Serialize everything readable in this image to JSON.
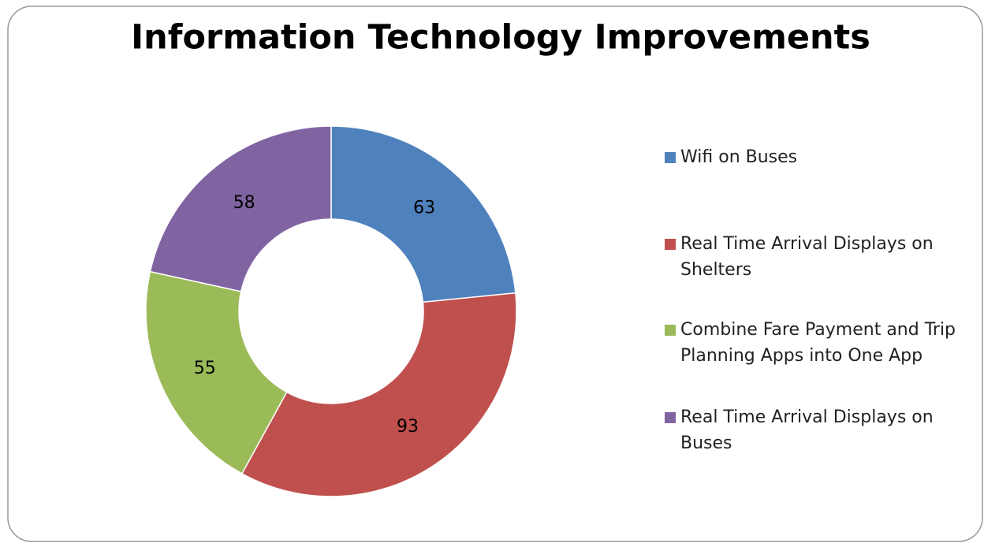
{
  "chart_data": {
    "type": "donut",
    "title": "Information Technology Improvements",
    "categories": [
      "Wifi on Buses",
      "Real Time Arrival Displays on Shelters",
      "Combine Fare Payment and Trip Planning Apps into One App",
      "Real Time Arrival Displays on Buses"
    ],
    "values": [
      63,
      93,
      55,
      58
    ],
    "colors": [
      "#4f81bd",
      "#c0504d",
      "#9bbb59",
      "#8064a2"
    ],
    "legend": "right"
  }
}
